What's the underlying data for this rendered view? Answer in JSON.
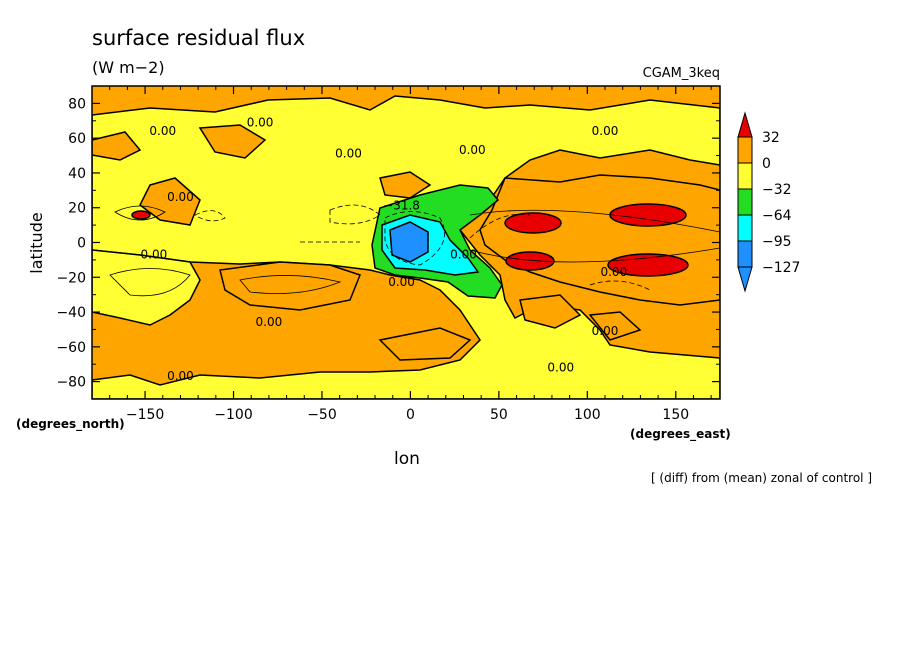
{
  "chart_data": {
    "type": "heatmap",
    "title": "surface residual flux",
    "subtitle": "(W m−2)",
    "run_label": "CGAM_3keq",
    "xlabel": "lon",
    "ylabel": "latitude",
    "x_units": "(degrees_east)",
    "y_units": "(degrees_north)",
    "footnote": "[ (diff) from (mean) zonal of control ]",
    "xlim": [
      -180,
      175
    ],
    "ylim": [
      -90,
      90
    ],
    "x_ticks": [
      -150,
      -100,
      -50,
      0,
      50,
      100,
      150
    ],
    "x_tick_labels": [
      "−150",
      "−100",
      "−50",
      "0",
      "50",
      "100",
      "150"
    ],
    "y_ticks": [
      80,
      60,
      40,
      20,
      0,
      -20,
      -40,
      -60,
      -80
    ],
    "y_tick_labels": [
      "80",
      "60",
      "40",
      "20",
      "0",
      "−20",
      "−40",
      "−60",
      "−80"
    ],
    "colorbar": {
      "levels": [
        32,
        0,
        -32,
        -64,
        -95,
        -127
      ],
      "level_labels": [
        "32",
        "0",
        "−32",
        "−64",
        "−95",
        "−127"
      ],
      "colors": [
        "#e80000",
        "#ffa500",
        "#ffff33",
        "#22dd22",
        "#00ffff",
        "#1e90ff"
      ]
    },
    "contour_labels": [
      {
        "text": "0.00",
        "lon": -140,
        "lat": 63
      },
      {
        "text": "0.00",
        "lon": -85,
        "lat": 68
      },
      {
        "text": "0.00",
        "lon": -35,
        "lat": 50
      },
      {
        "text": "0.00",
        "lon": 35,
        "lat": 52
      },
      {
        "text": "0.00",
        "lon": 110,
        "lat": 63
      },
      {
        "text": "0.00",
        "lon": -130,
        "lat": 25
      },
      {
        "text": "0.00",
        "lon": -145,
        "lat": -8
      },
      {
        "text": "−31.8",
        "lon": -5,
        "lat": 20
      },
      {
        "text": "0.00",
        "lon": 30,
        "lat": -8
      },
      {
        "text": "0.00",
        "lon": -5,
        "lat": -24
      },
      {
        "text": "0.00",
        "lon": 115,
        "lat": -18
      },
      {
        "text": "0.00",
        "lon": -80,
        "lat": -47
      },
      {
        "text": "0.00",
        "lon": 110,
        "lat": -52
      },
      {
        "text": "0.00",
        "lon": -130,
        "lat": -78
      },
      {
        "text": "0.00",
        "lon": 85,
        "lat": -73
      }
    ]
  }
}
